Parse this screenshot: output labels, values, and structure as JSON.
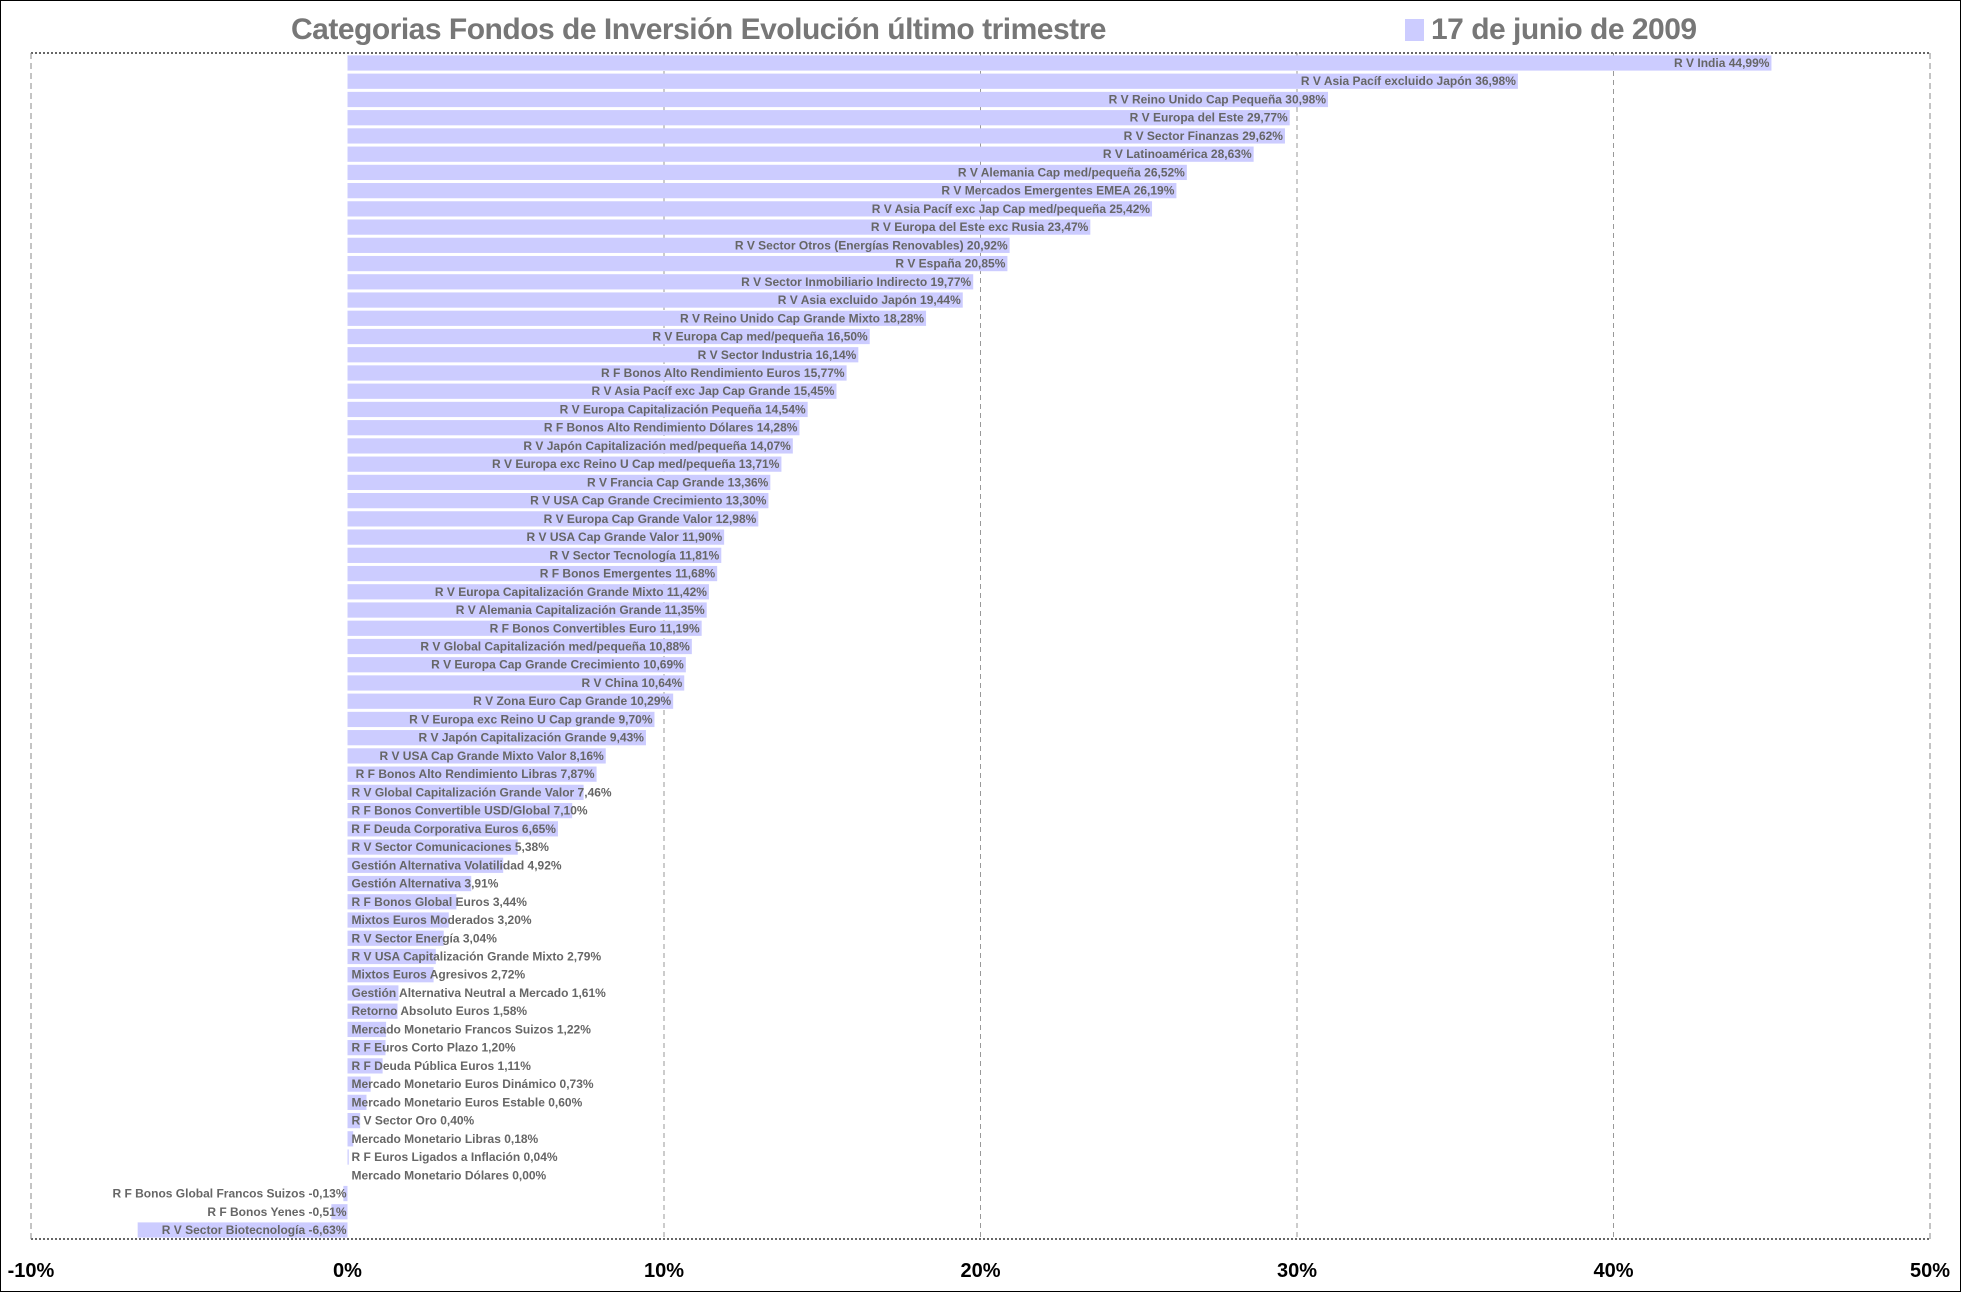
{
  "chart_data": {
    "type": "bar",
    "orientation": "horizontal",
    "title": "Categorias Fondos de Inversión Evolución último trimestre",
    "legend": [
      {
        "label": "17 de junio de 2009",
        "color": "#ccccff"
      }
    ],
    "legend_placement": "top-right",
    "xlim": [
      -10,
      50
    ],
    "xticks": [
      -10,
      0,
      10,
      20,
      30,
      40,
      50
    ],
    "xtick_labels": [
      "-10%",
      "0%",
      "10%",
      "20%",
      "30%",
      "40%",
      "50%"
    ],
    "grid": true,
    "bar_color": "#ccccff",
    "categories": [
      "R V India",
      "R V Asia Pacíf excluido Japón",
      "R V Reino Unido Cap Pequeña",
      "R V Europa del Este",
      "R V Sector Finanzas",
      "R V Latinoamérica",
      "R V Alemania Cap med/pequeña",
      "R V Mercados Emergentes EMEA",
      "R V Asia Pacíf exc Jap Cap med/pequeña",
      "R V Europa del Este exc Rusia",
      "R V Sector Otros (Energías Renovables)",
      "R V España",
      "R V Sector Inmobiliario Indirecto",
      "R V Asia excluido Japón",
      "R V Reino Unido Cap Grande Mixto",
      "R V Europa Cap med/pequeña",
      "R V Sector Industria",
      "R F Bonos Alto Rendimiento Euros",
      "R V Asia Pacíf exc Jap Cap Grande",
      "R V Europa Capitalización Pequeña",
      "R F Bonos Alto Rendimiento Dólares",
      "R V Japón Capitalización med/pequeña",
      "R V Europa exc Reino U Cap med/pequeña",
      "R V Francia Cap Grande",
      "R V USA Cap Grande Crecimiento",
      "R V Europa Cap Grande Valor",
      "R V USA Cap Grande Valor",
      "R V Sector Tecnología",
      "R F Bonos Emergentes",
      "R V Europa Capitalización Grande Mixto",
      "R V Alemania Capitalización Grande",
      "R F Bonos Convertibles Euro",
      "R V Global Capitalización med/pequeña",
      "R V Europa Cap Grande Crecimiento",
      "R V China",
      "R V Zona Euro Cap Grande",
      "R V Europa exc Reino U Cap grande",
      "R V Japón Capitalización Grande",
      "R V USA Cap Grande Mixto Valor",
      "R F Bonos Alto Rendimiento Libras",
      "R V Global Capitalización Grande Valor",
      "R F Bonos Convertible USD/Global",
      "R F Deuda Corporativa Euros",
      "R V Sector Comunicaciones",
      "Gestión Alternativa Volatilidad",
      "Gestión Alternativa",
      "R F Bonos Global Euros",
      "Mixtos Euros Moderados",
      "R V Sector Energía",
      "R V USA Capitalización Grande Mixto",
      "Mixtos Euros Agresivos",
      "Gestión Alternativa Neutral a Mercado",
      "Retorno Absoluto Euros",
      "Mercado Monetario Francos Suizos",
      "R F Euros Corto Plazo",
      "R F Deuda Pública Euros",
      "Mercado Monetario Euros Dinámico",
      "Mercado Monetario Euros Estable",
      "R V Sector Oro",
      "Mercado Monetario Libras",
      "R F Euros Ligados a Inflación",
      "Mercado Monetario Dólares",
      "R F Bonos Global Francos Suizos",
      "R F Bonos Yenes",
      "R V Sector Biotecnología"
    ],
    "values": [
      44.99,
      36.98,
      30.98,
      29.77,
      29.62,
      28.63,
      26.52,
      26.19,
      25.42,
      23.47,
      20.92,
      20.85,
      19.77,
      19.44,
      18.28,
      16.5,
      16.14,
      15.77,
      15.45,
      14.54,
      14.28,
      14.07,
      13.71,
      13.36,
      13.3,
      12.98,
      11.9,
      11.81,
      11.68,
      11.42,
      11.35,
      11.19,
      10.88,
      10.69,
      10.64,
      10.29,
      9.7,
      9.43,
      8.16,
      7.87,
      7.46,
      7.1,
      6.65,
      5.38,
      4.92,
      3.91,
      3.44,
      3.2,
      3.04,
      2.79,
      2.72,
      1.61,
      1.58,
      1.22,
      1.2,
      1.11,
      0.73,
      0.6,
      0.4,
      0.18,
      0.04,
      0.0,
      -0.13,
      -0.51,
      -6.63
    ],
    "value_labels": [
      "44,99%",
      "36,98%",
      "30,98%",
      "29,77%",
      "29,62%",
      "28,63%",
      "26,52%",
      "26,19%",
      "25,42%",
      "23,47%",
      "20,92%",
      "20,85%",
      "19,77%",
      "19,44%",
      "18,28%",
      "16,50%",
      "16,14%",
      "15,77%",
      "15,45%",
      "14,54%",
      "14,28%",
      "14,07%",
      "13,71%",
      "13,36%",
      "13,30%",
      "12,98%",
      "11,90%",
      "11,81%",
      "11,68%",
      "11,42%",
      "11,35%",
      "11,19%",
      "10,88%",
      "10,69%",
      "10,64%",
      "10,29%",
      "9,70%",
      "9,43%",
      "8,16%",
      "7,87%",
      "7,46%",
      "7,10%",
      "6,65%",
      "5,38%",
      "4,92%",
      "3,91%",
      "3,44%",
      "3,20%",
      "3,04%",
      "2,79%",
      "2,72%",
      "1,61%",
      "1,58%",
      "1,22%",
      "1,20%",
      "1,11%",
      "0,73%",
      "0,60%",
      "0,40%",
      "0,18%",
      "0,04%",
      "0,00%",
      "-0,13%",
      "-0,51%",
      "-6,63%"
    ]
  }
}
